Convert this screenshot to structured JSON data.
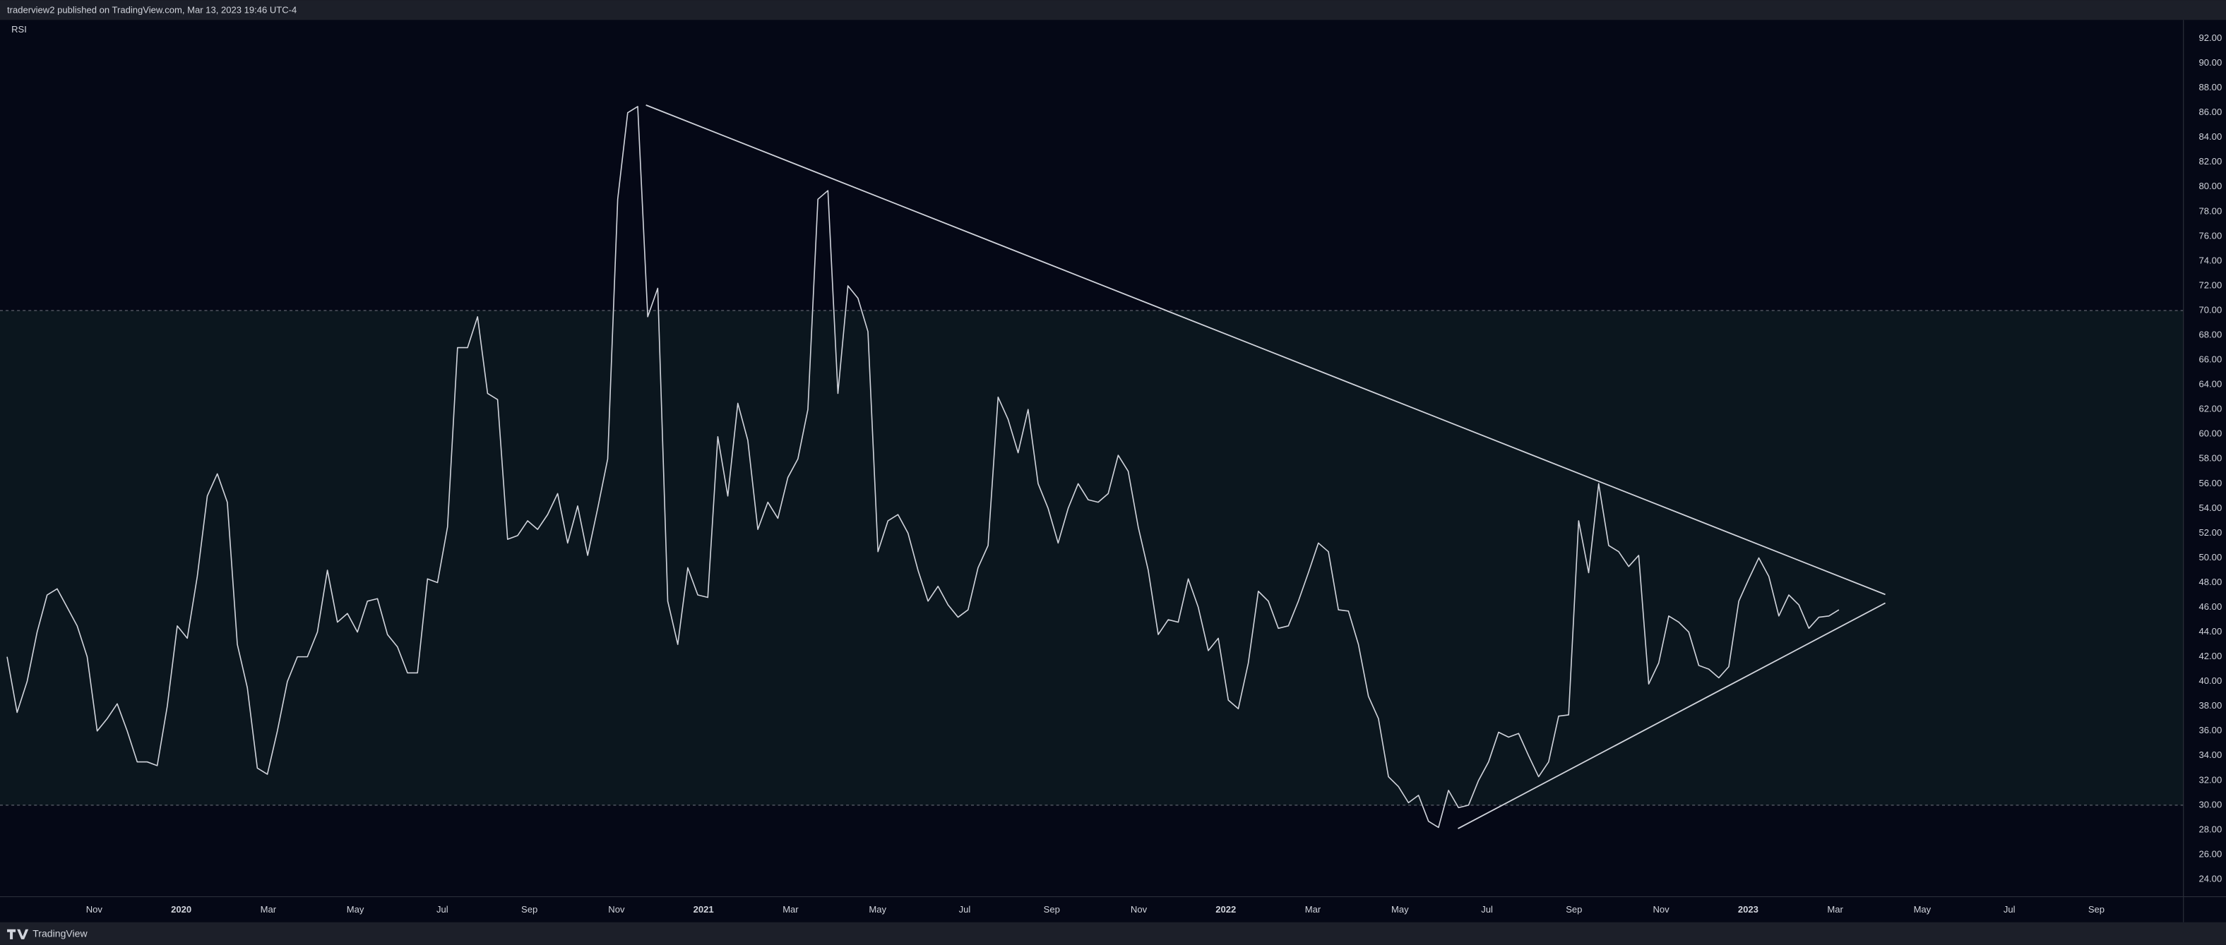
{
  "header": {
    "text": "traderview2 published on TradingView.com, Mar 13, 2023 19:46 UTC-4"
  },
  "footer": {
    "text": "TradingView"
  },
  "chart_data": {
    "type": "line",
    "title": "RSI",
    "series": [
      {
        "name": "RSI",
        "color": "#d1d4dc",
        "values": [
          42,
          37.5,
          40,
          44,
          47,
          47.5,
          46,
          44.5,
          42,
          36,
          37,
          38.2,
          36,
          33.5,
          33.5,
          33.2,
          38,
          44.5,
          43.5,
          48.5,
          55,
          56.8,
          54.5,
          43,
          39.5,
          33,
          32.5,
          36,
          40,
          42,
          42,
          44,
          49,
          44.8,
          45.5,
          44,
          46.5,
          46.7,
          43.8,
          42.8,
          40.7,
          40.7,
          48.3,
          48,
          52.5,
          67,
          67,
          69.5,
          63.3,
          62.8,
          51.5,
          51.8,
          53,
          52.3,
          53.5,
          55.2,
          51.2,
          54.2,
          50.2,
          54,
          58,
          79,
          86,
          86.5,
          69.5,
          71.8,
          46.5,
          43,
          49.2,
          47,
          46.8,
          59.8,
          55,
          62.5,
          59.5,
          52.3,
          54.5,
          53.2,
          56.5,
          58,
          62,
          79,
          79.7,
          63.3,
          72,
          71,
          68.3,
          50.5,
          53,
          53.5,
          52,
          49,
          46.5,
          47.7,
          46.2,
          45.2,
          45.8,
          49.2,
          51,
          63,
          61.2,
          58.5,
          62,
          56,
          54,
          51.2,
          54,
          56,
          54.7,
          54.5,
          55.2,
          58.3,
          57,
          52.5,
          49,
          43.8,
          45,
          44.8,
          48.3,
          46,
          42.5,
          43.5,
          38.5,
          37.8,
          41.5,
          47.3,
          46.5,
          44.3,
          44.5,
          46.5,
          48.8,
          51.2,
          50.5,
          45.8,
          45.7,
          43,
          38.8,
          37,
          32.3,
          31.5,
          30.2,
          30.8,
          28.7,
          28.2,
          31.2,
          29.8,
          30,
          32,
          33.5,
          35.9,
          35.5,
          35.8,
          34,
          32.3,
          33.5,
          37.2,
          37.3,
          53,
          48.8,
          56,
          51,
          50.5,
          49.3,
          50.2,
          39.8,
          41.5,
          45.3,
          44.8,
          44,
          41.3,
          41,
          40.3,
          41.2,
          46.5,
          48.3,
          50,
          48.5,
          45.3,
          47,
          46.2,
          44.3,
          45.2,
          45.3,
          45.8
        ]
      }
    ],
    "xlim": [
      "2019-09",
      "2023-11"
    ],
    "xticks": [
      {
        "value": "2019-11",
        "label": "Nov"
      },
      {
        "value": "2020-01",
        "label": "2020"
      },
      {
        "value": "2020-03",
        "label": "Mar"
      },
      {
        "value": "2020-05",
        "label": "May"
      },
      {
        "value": "2020-07",
        "label": "Jul"
      },
      {
        "value": "2020-09",
        "label": "Sep"
      },
      {
        "value": "2020-11",
        "label": "Nov"
      },
      {
        "value": "2021-01",
        "label": "2021"
      },
      {
        "value": "2021-03",
        "label": "Mar"
      },
      {
        "value": "2021-05",
        "label": "May"
      },
      {
        "value": "2021-07",
        "label": "Jul"
      },
      {
        "value": "2021-09",
        "label": "Sep"
      },
      {
        "value": "2021-11",
        "label": "Nov"
      },
      {
        "value": "2022-01",
        "label": "2022"
      },
      {
        "value": "2022-03",
        "label": "Mar"
      },
      {
        "value": "2022-05",
        "label": "May"
      },
      {
        "value": "2022-07",
        "label": "Jul"
      },
      {
        "value": "2022-09",
        "label": "Sep"
      },
      {
        "value": "2022-11",
        "label": "Nov"
      },
      {
        "value": "2023-01",
        "label": "2023"
      },
      {
        "value": "2023-03",
        "label": "Mar"
      },
      {
        "value": "2023-05",
        "label": "May"
      },
      {
        "value": "2023-07",
        "label": "Jul"
      },
      {
        "value": "2023-09",
        "label": "Sep"
      }
    ],
    "ylim": [
      22.6,
      93.5
    ],
    "yticks": [
      {
        "value": 24,
        "label": "24.00"
      },
      {
        "value": 26,
        "label": "26.00"
      },
      {
        "value": 28,
        "label": "28.00"
      },
      {
        "value": 30,
        "label": "30.00"
      },
      {
        "value": 32,
        "label": "32.00"
      },
      {
        "value": 34,
        "label": "34.00"
      },
      {
        "value": 36,
        "label": "36.00"
      },
      {
        "value": 38,
        "label": "38.00"
      },
      {
        "value": 40,
        "label": "40.00"
      },
      {
        "value": 42,
        "label": "42.00"
      },
      {
        "value": 44,
        "label": "44.00"
      },
      {
        "value": 46,
        "label": "46.00"
      },
      {
        "value": 48,
        "label": "48.00"
      },
      {
        "value": 50,
        "label": "50.00"
      },
      {
        "value": 52,
        "label": "52.00"
      },
      {
        "value": 54,
        "label": "54.00"
      },
      {
        "value": 56,
        "label": "56.00"
      },
      {
        "value": 58,
        "label": "58.00"
      },
      {
        "value": 60,
        "label": "60.00"
      },
      {
        "value": 62,
        "label": "62.00"
      },
      {
        "value": 64,
        "label": "64.00"
      },
      {
        "value": 66,
        "label": "66.00"
      },
      {
        "value": 68,
        "label": "68.00"
      },
      {
        "value": 70,
        "label": "70.00"
      },
      {
        "value": 72,
        "label": "72.00"
      },
      {
        "value": 74,
        "label": "74.00"
      },
      {
        "value": 76,
        "label": "76.00"
      },
      {
        "value": 78,
        "label": "78.00"
      },
      {
        "value": 80,
        "label": "80.00"
      },
      {
        "value": 82,
        "label": "82.00"
      },
      {
        "value": 84,
        "label": "84.00"
      },
      {
        "value": 86,
        "label": "86.00"
      },
      {
        "value": 88,
        "label": "88.00"
      },
      {
        "value": 90,
        "label": "90.00"
      },
      {
        "value": 92,
        "label": "92.00"
      }
    ],
    "levels": [
      70,
      30
    ],
    "band_color": "#0b161e",
    "grid": false
  }
}
